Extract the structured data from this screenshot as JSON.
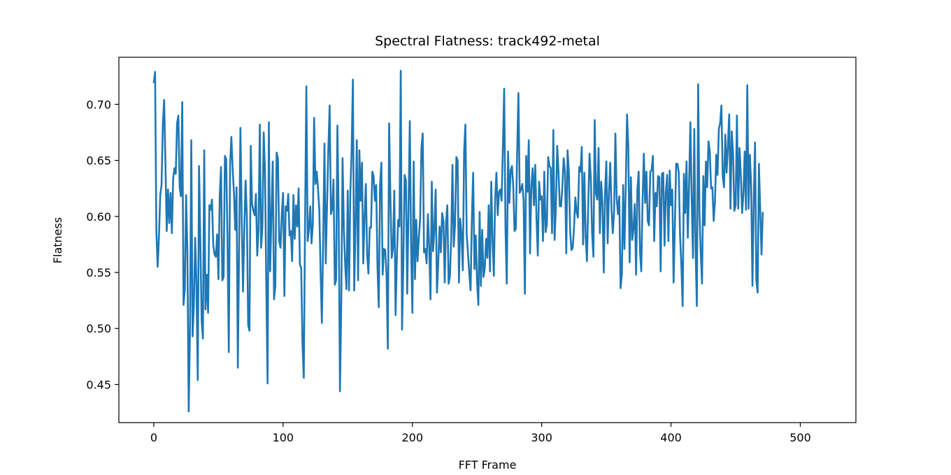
{
  "chart_data": {
    "type": "line",
    "title": "Spectral Flatness: track492-metal",
    "xlabel": "FFT Frame",
    "ylabel": "Flatness",
    "xlim": [
      -27,
      543
    ],
    "ylim": [
      0.416,
      0.742
    ],
    "xticks": [
      0,
      100,
      200,
      300,
      400,
      500
    ],
    "xtick_labels": [
      "0",
      "100",
      "200",
      "300",
      "400",
      "500"
    ],
    "yticks": [
      0.45,
      0.5,
      0.55,
      0.6,
      0.65,
      0.7
    ],
    "ytick_labels": [
      "0.45",
      "0.50",
      "0.55",
      "0.60",
      "0.65",
      "0.70"
    ],
    "grid": false,
    "legend": "none",
    "series": [
      {
        "color": "#1f77b4",
        "x_start": 0,
        "x_step": 1,
        "values": [
          0.719,
          0.729,
          0.587,
          0.555,
          0.582,
          0.619,
          0.628,
          0.682,
          0.704,
          0.648,
          0.587,
          0.624,
          0.594,
          0.621,
          0.585,
          0.634,
          0.643,
          0.638,
          0.683,
          0.69,
          0.626,
          0.618,
          0.702,
          0.521,
          0.535,
          0.619,
          0.568,
          0.426,
          0.499,
          0.668,
          0.493,
          0.52,
          0.581,
          0.539,
          0.454,
          0.645,
          0.579,
          0.507,
          0.491,
          0.659,
          0.517,
          0.548,
          0.514,
          0.61,
          0.606,
          0.615,
          0.574,
          0.566,
          0.564,
          0.584,
          0.544,
          0.619,
          0.644,
          0.543,
          0.546,
          0.654,
          0.651,
          0.579,
          0.479,
          0.646,
          0.671,
          0.642,
          0.621,
          0.588,
          0.626,
          0.465,
          0.574,
          0.679,
          0.599,
          0.533,
          0.588,
          0.632,
          0.6,
          0.503,
          0.498,
          0.663,
          0.611,
          0.605,
          0.601,
          0.62,
          0.565,
          0.588,
          0.682,
          0.572,
          0.591,
          0.675,
          0.641,
          0.539,
          0.451,
          0.684,
          0.551,
          0.603,
          0.649,
          0.526,
          0.538,
          0.657,
          0.652,
          0.578,
          0.572,
          0.602,
          0.621,
          0.529,
          0.609,
          0.605,
          0.62,
          0.583,
          0.587,
          0.56,
          0.619,
          0.58,
          0.61,
          0.591,
          0.625,
          0.557,
          0.554,
          0.486,
          0.456,
          0.596,
          0.716,
          0.578,
          0.589,
          0.609,
          0.576,
          0.593,
          0.688,
          0.629,
          0.64,
          0.625,
          0.606,
          0.551,
          0.505,
          0.579,
          0.665,
          0.558,
          0.611,
          0.66,
          0.699,
          0.602,
          0.607,
          0.633,
          0.539,
          0.543,
          0.681,
          0.6,
          0.444,
          0.524,
          0.652,
          0.589,
          0.557,
          0.535,
          0.623,
          0.534,
          0.621,
          0.659,
          0.722,
          0.534,
          0.591,
          0.668,
          0.543,
          0.659,
          0.614,
          0.648,
          0.558,
          0.599,
          0.629,
          0.566,
          0.549,
          0.59,
          0.59,
          0.64,
          0.636,
          0.614,
          0.628,
          0.555,
          0.519,
          0.628,
          0.648,
          0.548,
          0.571,
          0.57,
          0.548,
          0.482,
          0.683,
          0.617,
          0.563,
          0.572,
          0.623,
          0.512,
          0.564,
          0.597,
          0.591,
          0.73,
          0.499,
          0.558,
          0.637,
          0.632,
          0.531,
          0.607,
          0.685,
          0.573,
          0.514,
          0.649,
          0.544,
          0.597,
          0.56,
          0.581,
          0.598,
          0.661,
          0.674,
          0.568,
          0.571,
          0.558,
          0.602,
          0.572,
          0.526,
          0.631,
          0.569,
          0.589,
          0.624,
          0.532,
          0.558,
          0.591,
          0.568,
          0.603,
          0.596,
          0.541,
          0.594,
          0.61,
          0.54,
          0.546,
          0.58,
          0.646,
          0.573,
          0.593,
          0.653,
          0.65,
          0.541,
          0.598,
          0.584,
          0.552,
          0.658,
          0.682,
          0.584,
          0.567,
          0.549,
          0.534,
          0.598,
          0.639,
          0.553,
          0.583,
          0.542,
          0.521,
          0.604,
          0.538,
          0.588,
          0.546,
          0.554,
          0.58,
          0.563,
          0.61,
          0.551,
          0.631,
          0.578,
          0.547,
          0.616,
          0.639,
          0.601,
          0.622,
          0.624,
          0.614,
          0.662,
          0.714,
          0.589,
          0.54,
          0.658,
          0.612,
          0.641,
          0.645,
          0.627,
          0.587,
          0.589,
          0.656,
          0.71,
          0.621,
          0.624,
          0.629,
          0.614,
          0.531,
          0.654,
          0.622,
          0.668,
          0.567,
          0.627,
          0.643,
          0.61,
          0.646,
          0.597,
          0.565,
          0.631,
          0.615,
          0.618,
          0.578,
          0.64,
          0.586,
          0.593,
          0.653,
          0.645,
          0.643,
          0.585,
          0.677,
          0.579,
          0.609,
          0.663,
          0.64,
          0.609,
          0.609,
          0.627,
          0.652,
          0.64,
          0.567,
          0.659,
          0.64,
          0.587,
          0.57,
          0.572,
          0.59,
          0.617,
          0.604,
          0.599,
          0.644,
          0.64,
          0.662,
          0.575,
          0.639,
          0.582,
          0.56,
          0.611,
          0.656,
          0.634,
          0.585,
          0.564,
          0.686,
          0.62,
          0.615,
          0.661,
          0.585,
          0.631,
          0.612,
          0.55,
          0.621,
          0.649,
          0.576,
          0.62,
          0.648,
          0.607,
          0.585,
          0.604,
          0.674,
          0.616,
          0.602,
          0.618,
          0.536,
          0.548,
          0.628,
          0.571,
          0.626,
          0.691,
          0.662,
          0.559,
          0.635,
          0.579,
          0.589,
          0.611,
          0.548,
          0.624,
          0.64,
          0.569,
          0.551,
          0.613,
          0.656,
          0.612,
          0.64,
          0.596,
          0.592,
          0.64,
          0.641,
          0.654,
          0.578,
          0.621,
          0.609,
          0.636,
          0.635,
          0.551,
          0.638,
          0.639,
          0.574,
          0.621,
          0.637,
          0.578,
          0.641,
          0.61,
          0.624,
          0.541,
          0.592,
          0.647,
          0.647,
          0.639,
          0.583,
          0.557,
          0.52,
          0.638,
          0.603,
          0.649,
          0.581,
          0.629,
          0.684,
          0.617,
          0.563,
          0.678,
          0.571,
          0.52,
          0.718,
          0.604,
          0.567,
          0.54,
          0.636,
          0.592,
          0.649,
          0.626,
          0.667,
          0.658,
          0.625,
          0.626,
          0.596,
          0.613,
          0.655,
          0.637,
          0.678,
          0.683,
          0.699,
          0.636,
          0.626,
          0.673,
          0.639,
          0.663,
          0.691,
          0.607,
          0.676,
          0.656,
          0.605,
          0.61,
          0.69,
          0.607,
          0.661,
          0.637,
          0.603,
          0.62,
          0.658,
          0.606,
          0.717,
          0.607,
          0.655,
          0.628,
          0.538,
          0.614,
          0.666,
          0.543,
          0.532,
          0.647,
          0.606,
          0.566,
          0.604
        ]
      }
    ]
  }
}
